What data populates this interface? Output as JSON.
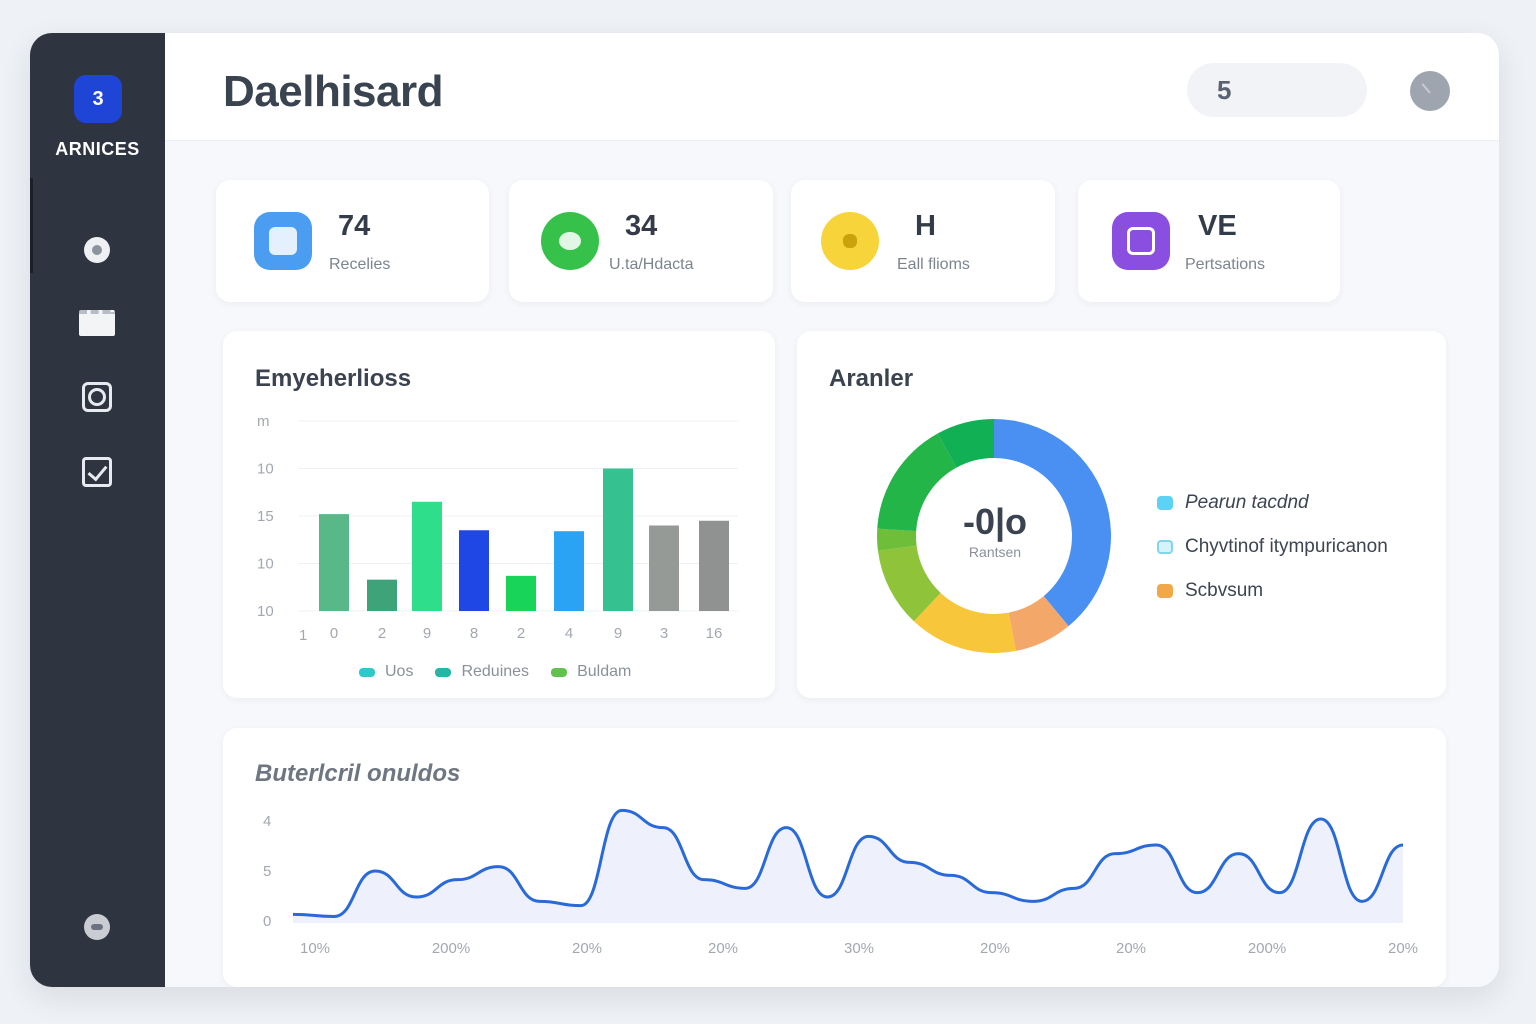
{
  "sidebar": {
    "brand_badge": "3",
    "brand_name": "ARNICES",
    "items": [
      {
        "icon": "user-circle-icon"
      },
      {
        "icon": "card-icon"
      },
      {
        "icon": "chat-icon"
      },
      {
        "icon": "checkbox-icon"
      }
    ],
    "bottom_icon": "settings-icon"
  },
  "header": {
    "title": "Daelhisard",
    "search_value": "5",
    "avatar_icon": "clock-icon"
  },
  "stats": [
    {
      "value": "74",
      "label": "Recelies",
      "icon": "document-icon",
      "color": "#4a9df0"
    },
    {
      "value": "34",
      "label": "U.ta/Hdacta",
      "icon": "chat-bubble-icon",
      "color": "#36c24a"
    },
    {
      "value": "H",
      "label": "Eall flioms",
      "icon": "tag-icon",
      "color": "#f7d43a"
    },
    {
      "value": "VE",
      "label": "Pertsations",
      "icon": "inbox-icon",
      "color": "#8a4fe0"
    }
  ],
  "bar_panel": {
    "title": "Emyeherlioss",
    "legend": [
      {
        "label": "Uos",
        "color": "#2ec9c9"
      },
      {
        "label": "Reduines",
        "color": "#28b5a3"
      },
      {
        "label": "Buldam",
        "color": "#63c24d"
      }
    ]
  },
  "donut_panel": {
    "title": "Aranler",
    "center_value": "-0|o",
    "center_label": "Rantsen",
    "legend": [
      {
        "label": "Pearun tacdnd",
        "color": "#5ed2f5"
      },
      {
        "label": "Chyvtinof itympuricanon",
        "color": "#7fd6ee"
      },
      {
        "label": "Scbvsum",
        "color": "#f1a84b"
      }
    ]
  },
  "line_panel": {
    "title": "Buterlcril onuldos"
  },
  "chart_data": [
    {
      "type": "bar",
      "y_ticks": [
        "m",
        "10",
        "15",
        "10",
        "10"
      ],
      "categories": [
        "0",
        "2",
        "9",
        "8",
        "2",
        "4",
        "9",
        "3",
        "16"
      ],
      "extra_x_label": "1",
      "values": [
        10.2,
        3.3,
        11.5,
        8.5,
        3.7,
        8.4,
        15,
        9,
        9.5
      ],
      "colors": [
        "#59b887",
        "#3fa37a",
        "#2ede8a",
        "#1f47e6",
        "#18d55a",
        "#2aa3f5",
        "#36c290",
        "#969a97",
        "#8f9290"
      ],
      "ylim": [
        0,
        20
      ]
    },
    {
      "type": "pie",
      "donut": true,
      "segments": [
        {
          "value": 39,
          "color": "#4a90f2"
        },
        {
          "value": 8,
          "color": "#f3a869"
        },
        {
          "value": 15,
          "color": "#f8c63a"
        },
        {
          "value": 11,
          "color": "#8fc43a"
        },
        {
          "value": 3,
          "color": "#6fbe3a"
        },
        {
          "value": 16,
          "color": "#24b548"
        },
        {
          "value": 8,
          "color": "#12b055"
        }
      ]
    },
    {
      "type": "area",
      "y_ticks": [
        "4",
        "5",
        "0"
      ],
      "x_labels": [
        "10%",
        "200%",
        "20%",
        "20%",
        "30%",
        "20%",
        "20%",
        "200%",
        "20%"
      ],
      "values": [
        0.2,
        0.15,
        1.2,
        0.6,
        1.0,
        1.3,
        0.5,
        0.4,
        2.6,
        2.2,
        1.0,
        0.8,
        2.2,
        0.6,
        2.0,
        1.4,
        1.1,
        0.7,
        0.5,
        0.8,
        1.6,
        1.8,
        0.7,
        1.6,
        0.7,
        2.4,
        0.5,
        1.8
      ],
      "ylim": [
        0,
        3
      ],
      "line_color": "#2a6ad8",
      "fill_color": "#eef1fb"
    }
  ]
}
